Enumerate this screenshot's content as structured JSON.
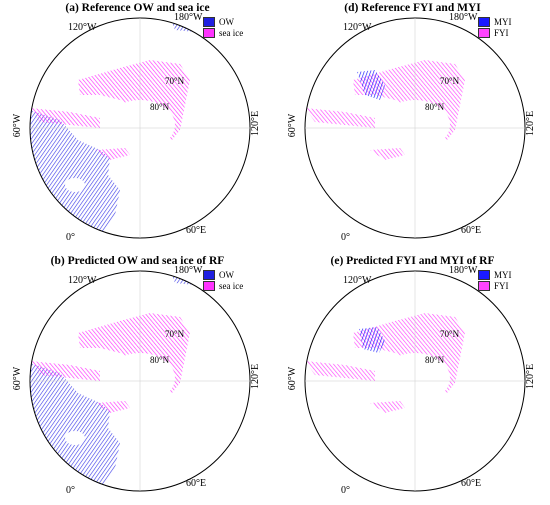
{
  "colors": {
    "ow": "#3a3ae8",
    "sea_ice": "#ff33ff",
    "myi": "#1a1aff",
    "fyi": "#ff44ff",
    "land": "#ffffff",
    "grid": "#cccccc"
  },
  "panels": [
    {
      "id": "a",
      "title": "(a) Reference OW and sea ice",
      "legend": [
        {
          "label": "OW",
          "color": "#2020e0"
        },
        {
          "label": "sea ice",
          "color": "#ff33ff"
        }
      ],
      "labels": {
        "w120": "120°W",
        "w180": "180°W",
        "w60": "60°W",
        "e120": "120°E",
        "e60": "60°E",
        "zero": "0°",
        "n70": "70°N",
        "n80": "80°N"
      }
    },
    {
      "id": "d",
      "title": "(d) Reference FYI and MYI",
      "legend": [
        {
          "label": "MYI",
          "color": "#1a1aff"
        },
        {
          "label": "FYI",
          "color": "#ff44ff"
        }
      ],
      "labels": {
        "w120": "120°W",
        "w180": "180°W",
        "w60": "60°W",
        "e120": "120°E",
        "e60": "60°E",
        "zero": "0°",
        "n70": "70°N",
        "n80": "80°N"
      }
    },
    {
      "id": "b",
      "title": "(b) Predicted OW and sea ice of RF",
      "legend": [
        {
          "label": "OW",
          "color": "#2020e0"
        },
        {
          "label": "sea ice",
          "color": "#ff33ff"
        }
      ],
      "labels": {
        "w120": "120°W",
        "w180": "180°W",
        "w60": "60°W",
        "e120": "120°E",
        "e60": "60°E",
        "zero": "0°",
        "n70": "70°N",
        "n80": "80°N"
      }
    },
    {
      "id": "e",
      "title": "(e) Predicted FYI and MYI of RF",
      "legend": [
        {
          "label": "MYI",
          "color": "#1a1aff"
        },
        {
          "label": "FYI",
          "color": "#ff44ff"
        }
      ],
      "labels": {
        "w120": "120°W",
        "w180": "180°W",
        "w60": "60°W",
        "e120": "120°E",
        "e60": "60°E",
        "zero": "0°",
        "n70": "70°N",
        "n80": "80°N"
      }
    }
  ]
}
